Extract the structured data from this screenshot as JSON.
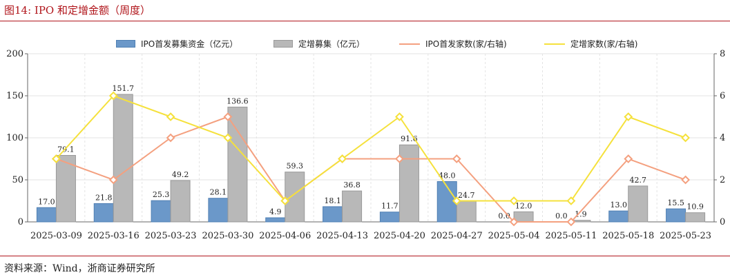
{
  "figure": {
    "title": "图14:   IPO 和定增金额（周度）",
    "source": "资料来源：Wind，浙商证券研究所"
  },
  "colors": {
    "ipo_amount": "#6b98c9",
    "private_amount": "#b8b8b8",
    "ipo_count": "#f4a07f",
    "private_count": "#f5e13c",
    "rule": "#b0141a"
  },
  "chart_data": {
    "type": "bar",
    "categories": [
      "2025-03-09",
      "2025-03-16",
      "2025-03-23",
      "2025-03-30",
      "2025-04-06",
      "2025-04-13",
      "2025-04-20",
      "2025-04-27",
      "2025-05-04",
      "2025-05-11",
      "2025-05-18",
      "2025-05-23"
    ],
    "series": [
      {
        "name": "IPO首发募集资金（亿元）",
        "type": "bar",
        "axis": "left",
        "values": [
          17.0,
          21.8,
          25.3,
          28.1,
          4.9,
          18.1,
          11.7,
          48.0,
          0.0,
          0.0,
          13.0,
          15.5
        ],
        "labels": [
          "17.0",
          "21.8",
          "25.3",
          "28.1",
          "4.9",
          "18.1",
          "11.7",
          "48.0",
          "0.0",
          "0.0",
          "13.0",
          "15.5"
        ]
      },
      {
        "name": "定增募集（亿元）",
        "type": "bar",
        "axis": "left",
        "values": [
          79.1,
          151.7,
          49.2,
          136.6,
          59.3,
          36.8,
          91.6,
          24.7,
          12.0,
          1.9,
          42.7,
          10.9
        ],
        "labels": [
          "79.1",
          "151.7",
          "49.2",
          "136.6",
          "59.3",
          "36.8",
          "91.6",
          "24.7",
          "12.0",
          "1.9",
          "42.7",
          "10.9"
        ]
      },
      {
        "name": "IPO首发家数(家/右轴)",
        "type": "line",
        "axis": "right",
        "values": [
          3,
          2,
          4,
          5,
          1,
          3,
          3,
          3,
          0,
          0,
          3,
          2
        ]
      },
      {
        "name": "定增家数(家/右轴)",
        "type": "line",
        "axis": "right",
        "values": [
          3,
          6,
          5,
          4,
          1,
          3,
          5,
          1,
          1,
          1,
          5,
          4
        ]
      }
    ],
    "y_left": {
      "min": 0,
      "max": 200,
      "ticks": [
        "0",
        "50",
        "100",
        "150",
        "200"
      ]
    },
    "y_right": {
      "min": 0,
      "max": 8,
      "ticks": [
        "0",
        "2",
        "4",
        "6",
        "8"
      ]
    },
    "grid": true,
    "legend": "top-center"
  }
}
